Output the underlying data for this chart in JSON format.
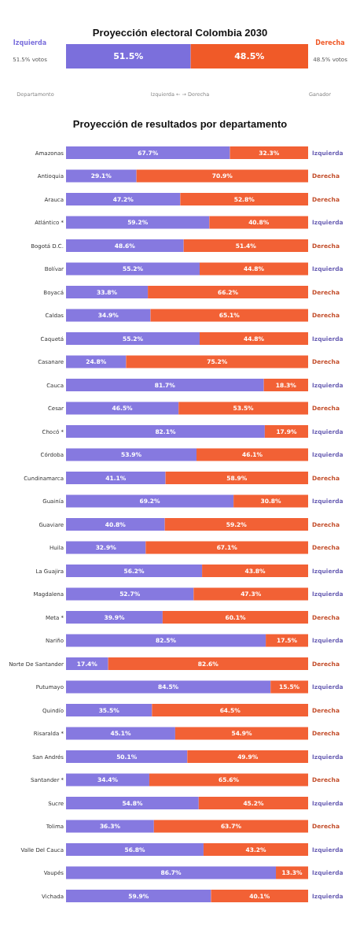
{
  "chart_data": [
    {
      "type": "bar",
      "title": "Proyección electoral Colombia 2030",
      "orientation": "horizontal",
      "stacked": true,
      "categories": [
        null
      ],
      "xlim": [
        0,
        100
      ],
      "tick_labels": false,
      "legend": false,
      "series": [
        {
          "name": "Izquierda",
          "color": "#7b6fdc",
          "values": [
            51.5
          ],
          "value_labels": [
            "51.5%"
          ]
        },
        {
          "name": "Derecha",
          "color": "#f05a28",
          "values": [
            48.5
          ],
          "value_labels": [
            "48.5%"
          ]
        }
      ],
      "annotations": [
        "51.5% votos",
        "48.5% votos",
        "Departamento",
        "Izquierda ← → Derecha",
        "Ganador"
      ]
    },
    {
      "type": "bar",
      "title": "Proyección de resultados por departamento",
      "orientation": "horizontal",
      "stacked": true,
      "xlim": [
        0,
        100
      ],
      "tick_labels": "y",
      "legend": false,
      "categories": [
        "Amazonas",
        "Antioquia",
        "Arauca",
        "Atlántico *",
        "Bogotá D.C.",
        "Bolívar",
        "Boyacá",
        "Caldas",
        "Caquetá",
        "Casanare",
        "Cauca",
        "Cesar",
        "Chocó *",
        "Córdoba",
        "Cundinamarca",
        "Guainía",
        "Guaviare",
        "Huila",
        "La Guajira",
        "Magdalena",
        "Meta *",
        "Nariño",
        "Norte De Santander",
        "Putumayo",
        "Quindío",
        "Risaralda *",
        "San Andrés",
        "Santander *",
        "Sucre",
        "Tolima",
        "Valle Del Cauca",
        "Vaupés",
        "Vichada"
      ],
      "series": [
        {
          "color": "#8679e0",
          "values": [
            67.7,
            29.1,
            47.2,
            59.2,
            48.6,
            55.2,
            33.8,
            34.9,
            55.2,
            24.8,
            81.7,
            46.5,
            82.1,
            53.9,
            41.1,
            69.2,
            40.8,
            32.9,
            56.2,
            52.7,
            39.9,
            82.5,
            17.4,
            84.5,
            35.5,
            45.1,
            50.1,
            34.4,
            54.8,
            36.3,
            56.8,
            86.7,
            59.9
          ],
          "value_labels": [
            "67.7%",
            "29.1%",
            "47.2%",
            "59.2%",
            "48.6%",
            "55.2%",
            "33.8%",
            "34.9%",
            "55.2%",
            "24.8%",
            "81.7%",
            "46.5%",
            "82.1%",
            "53.9%",
            "41.1%",
            "69.2%",
            "40.8%",
            "32.9%",
            "56.2%",
            "52.7%",
            "39.9%",
            "82.5%",
            "17.4%",
            "84.5%",
            "35.5%",
            "45.1%",
            "50.1%",
            "34.4%",
            "54.8%",
            "36.3%",
            "56.8%",
            "86.7%",
            "59.9%"
          ]
        },
        {
          "color": "#f26135",
          "values": [
            32.3,
            70.9,
            52.8,
            40.8,
            51.4,
            44.8,
            66.2,
            65.1,
            44.8,
            75.2,
            18.3,
            53.5,
            17.9,
            46.1,
            58.9,
            30.8,
            59.2,
            67.1,
            43.8,
            47.3,
            60.1,
            17.5,
            82.6,
            15.5,
            64.5,
            54.9,
            49.9,
            65.6,
            45.2,
            63.7,
            43.2,
            13.3,
            40.1
          ],
          "value_labels": [
            "32.3%",
            "70.9%",
            "52.8%",
            "40.8%",
            "51.4%",
            "44.8%",
            "66.2%",
            "65.1%",
            "44.8%",
            "75.2%",
            "18.3%",
            "53.5%",
            "17.9%",
            "46.1%",
            "58.9%",
            "30.8%",
            "59.2%",
            "67.1%",
            "43.8%",
            "47.3%",
            "60.1%",
            "17.5%",
            "82.6%",
            "15.5%",
            "64.5%",
            "54.9%",
            "49.9%",
            "65.6%",
            "45.2%",
            "63.7%",
            "43.2%",
            "13.3%",
            "40.1%"
          ]
        }
      ],
      "annotations": [
        "Izquierda",
        "Derecha",
        "Derecha",
        "Izquierda",
        "Derecha",
        "Izquierda",
        "Derecha",
        "Derecha",
        "Izquierda",
        "Derecha",
        "Izquierda",
        "Derecha",
        "Izquierda",
        "Izquierda",
        "Derecha",
        "Izquierda",
        "Derecha",
        "Derecha",
        "Izquierda",
        "Izquierda",
        "Derecha",
        "Izquierda",
        "Derecha",
        "Izquierda",
        "Derecha",
        "Derecha",
        "Izquierda",
        "Derecha",
        "Izquierda",
        "Derecha",
        "Izquierda",
        "Izquierda",
        "Izquierda"
      ]
    }
  ]
}
